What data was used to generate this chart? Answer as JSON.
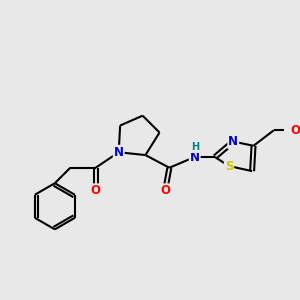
{
  "bg_color": "#e8e8e8",
  "bond_color": "#000000",
  "bond_width": 1.5,
  "atom_colors": {
    "N": "#0000cd",
    "O": "#ff0000",
    "S": "#cccc00",
    "H": "#008080",
    "C": "#000000"
  },
  "font_size": 8.5
}
